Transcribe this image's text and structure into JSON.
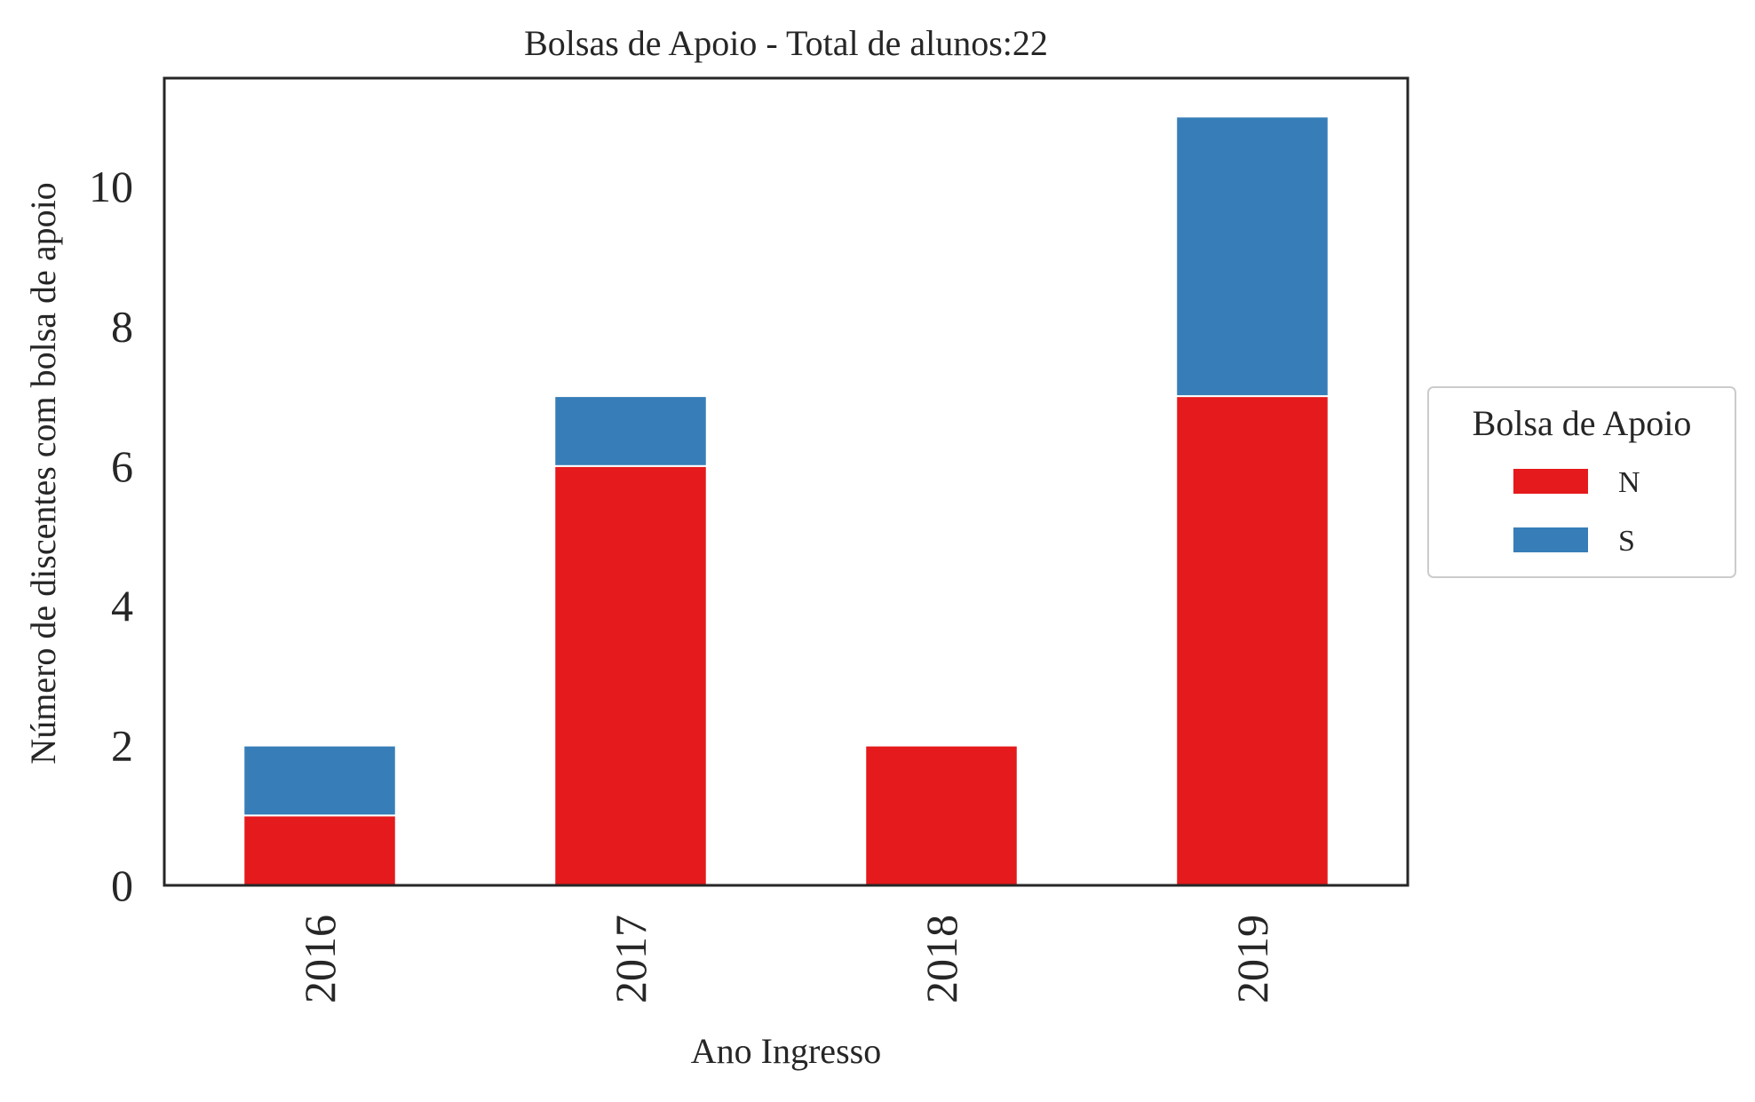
{
  "chart_data": {
    "type": "bar",
    "stacked": true,
    "title": "Bolsas de Apoio - Total de alunos:22",
    "xlabel": "Ano Ingresso",
    "ylabel": "Número de discentes com bolsa de apoio",
    "categories": [
      "2016",
      "2017",
      "2018",
      "2019"
    ],
    "series": [
      {
        "name": "N",
        "values": [
          1,
          6,
          2,
          7
        ],
        "color": "#e41a1c"
      },
      {
        "name": "S",
        "values": [
          1,
          1,
          0,
          4
        ],
        "color": "#377eb8"
      }
    ],
    "yticks": [
      0,
      2,
      4,
      6,
      8,
      10
    ],
    "ylim": [
      0,
      11.55
    ],
    "grid": false,
    "legend": {
      "title": "Bolsa de Apoio",
      "placement": "right, outside plot"
    }
  }
}
